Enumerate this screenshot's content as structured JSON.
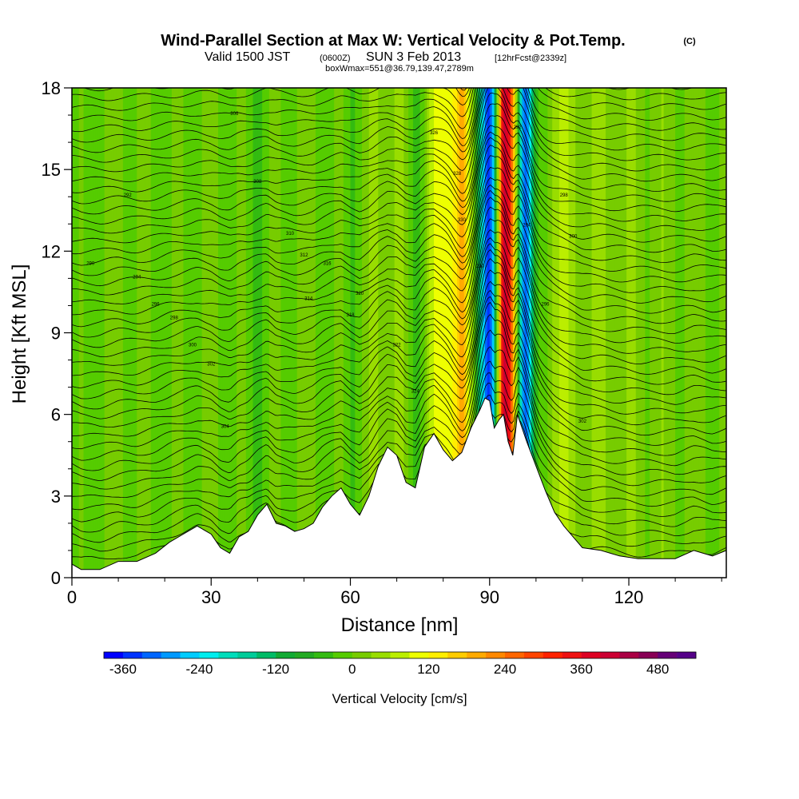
{
  "chart_data": {
    "type": "heatmap",
    "title_main": "Wind-Parallel Section at Max W: Vertical Velocity & Pot.Temp.",
    "title_copyright": "(C)",
    "subtitle_line1_a": "Valid 1500 JST",
    "subtitle_line1_b": "(0600Z)",
    "subtitle_line1_c": "SUN 3 Feb 2013",
    "subtitle_line1_d": "[12hrFcst@2339z]",
    "subtitle_line2": "boxWmax=551@36.79,139.47,2789m",
    "xlabel": "Distance [nm]",
    "ylabel": "Height [Kft MSL]",
    "xlim": [
      0,
      141
    ],
    "ylim": [
      0,
      18
    ],
    "x_ticks": [
      0,
      30,
      60,
      90,
      120
    ],
    "y_ticks": [
      0,
      3,
      6,
      9,
      12,
      15,
      18
    ],
    "colorbar": {
      "label": "Vertical Velocity [cm/s]",
      "ticks": [
        -360,
        -240,
        -120,
        0,
        120,
        240,
        360,
        480
      ],
      "levels": [
        -390,
        -360,
        -330,
        -300,
        -270,
        -240,
        -210,
        -180,
        -150,
        -120,
        -90,
        -60,
        -30,
        0,
        30,
        60,
        90,
        120,
        150,
        180,
        210,
        240,
        270,
        300,
        330,
        360,
        390,
        420,
        450,
        480,
        510,
        540
      ],
      "colors": [
        "#0000ff",
        "#0033ff",
        "#0066ff",
        "#0099ff",
        "#00ccff",
        "#00eeee",
        "#00ddbb",
        "#00cc99",
        "#00bb66",
        "#11aa33",
        "#22aa22",
        "#33bb11",
        "#55cc00",
        "#77cc00",
        "#99dd00",
        "#bbee00",
        "#eeff00",
        "#ffee00",
        "#ffcc00",
        "#ffaa00",
        "#ff8800",
        "#ff6600",
        "#ff4400",
        "#ff2200",
        "#ee1111",
        "#dd0022",
        "#cc0033",
        "#aa0044",
        "#880055",
        "#660077",
        "#550088"
      ]
    },
    "vertical_velocity_profile": {
      "x": [
        0,
        10,
        20,
        30,
        40,
        50,
        60,
        65,
        70,
        74,
        78,
        82,
        84,
        86,
        88,
        89,
        90,
        91,
        92,
        93,
        94,
        95,
        96,
        97,
        98,
        100,
        104,
        110,
        120,
        130,
        141
      ],
      "w": [
        -20,
        10,
        -10,
        0,
        -20,
        10,
        -20,
        20,
        40,
        -40,
        80,
        140,
        200,
        40,
        -150,
        -280,
        -360,
        -200,
        100,
        400,
        360,
        250,
        0,
        -250,
        -330,
        -60,
        60,
        30,
        20,
        10,
        0
      ]
    },
    "terrain": {
      "x": [
        0,
        2,
        6,
        10,
        14,
        18,
        21,
        24,
        27,
        30,
        32,
        34,
        36,
        38,
        40,
        42,
        44,
        46,
        48,
        50,
        52,
        54,
        56,
        58,
        60,
        62,
        64,
        66,
        68,
        70,
        72,
        74,
        76,
        78,
        80,
        82,
        84,
        86,
        88,
        89,
        90,
        91,
        92,
        93,
        94,
        95,
        96,
        98,
        100,
        102,
        104,
        106,
        108,
        110,
        114,
        118,
        122,
        126,
        130,
        134,
        138,
        141
      ],
      "height": [
        0.5,
        0.3,
        0.3,
        0.6,
        0.6,
        0.9,
        1.3,
        1.6,
        1.9,
        1.6,
        1.1,
        0.9,
        1.5,
        1.7,
        2.3,
        2.7,
        2.0,
        1.9,
        1.7,
        1.8,
        2.0,
        2.6,
        3.0,
        3.3,
        2.7,
        2.3,
        3.0,
        4.1,
        4.8,
        4.5,
        3.5,
        3.3,
        4.8,
        5.3,
        4.7,
        4.3,
        4.6,
        5.5,
        6.2,
        6.6,
        6.5,
        5.5,
        5.8,
        6.0,
        5.0,
        4.5,
        6.0,
        5.0,
        4.1,
        3.2,
        2.4,
        1.9,
        1.5,
        1.1,
        1.0,
        0.8,
        0.7,
        0.7,
        0.7,
        1.0,
        0.8,
        1.0
      ]
    },
    "theta_contour_labels": [
      "290",
      "292",
      "294",
      "296",
      "298",
      "300",
      "302",
      "304",
      "306",
      "308",
      "310",
      "312",
      "314",
      "316",
      "318",
      "320",
      "322",
      "324",
      "326",
      "328",
      "330"
    ]
  }
}
